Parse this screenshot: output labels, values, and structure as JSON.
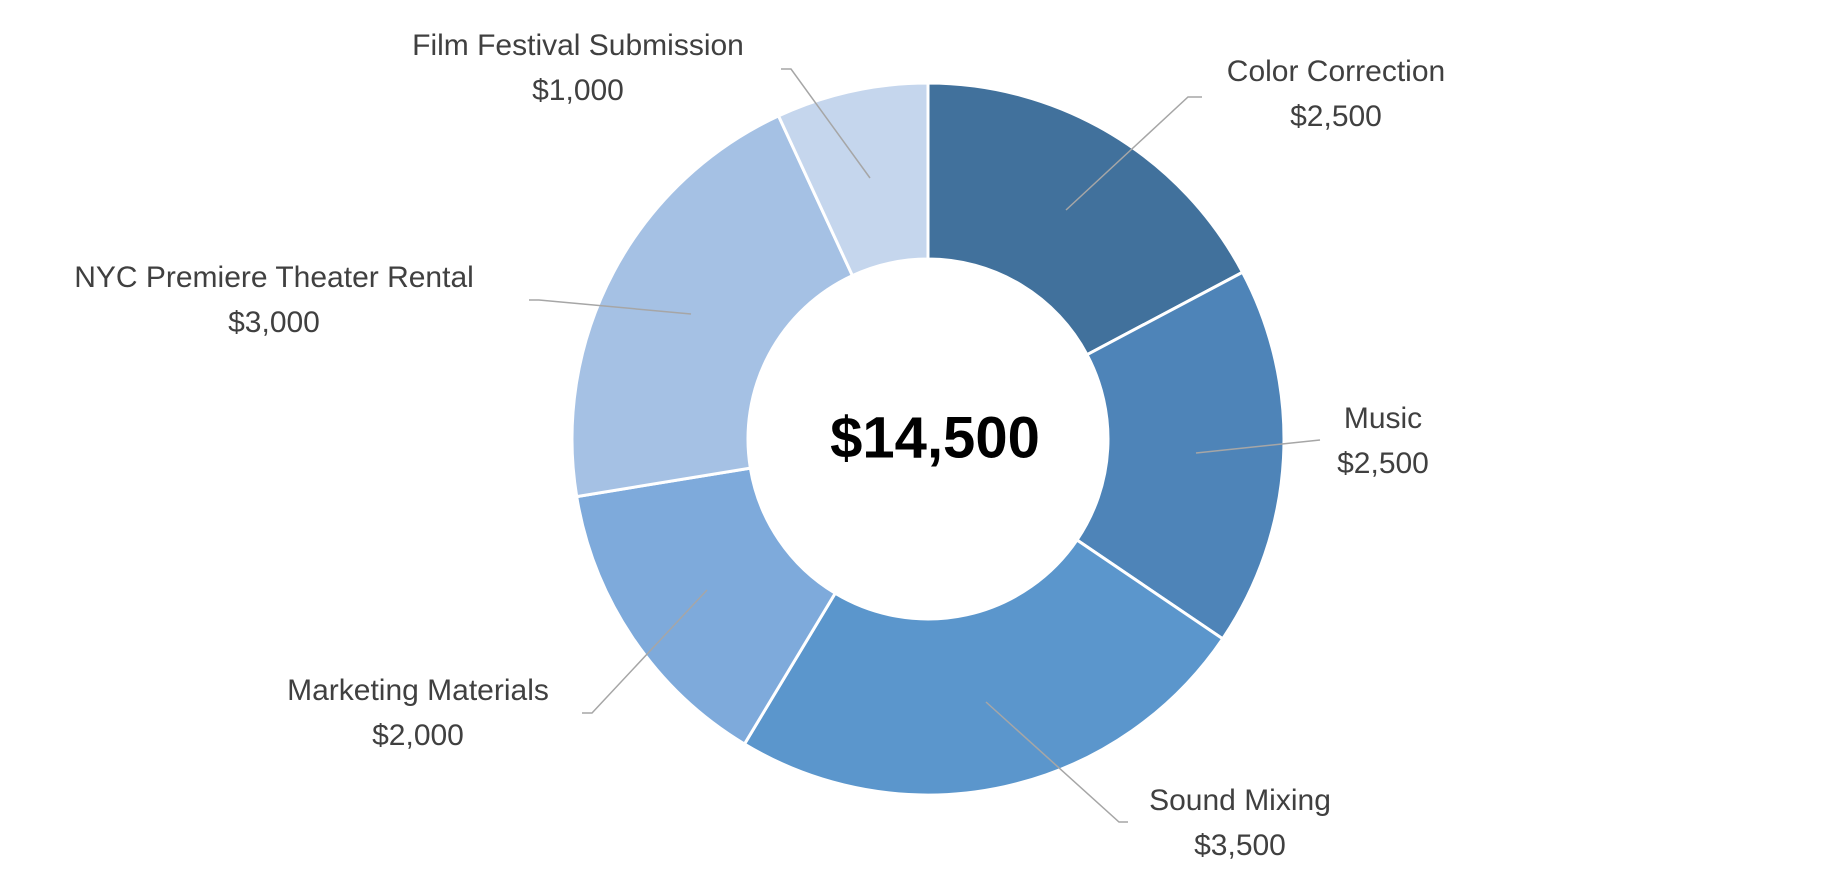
{
  "chart_data": {
    "type": "donut",
    "center_label": "$14,500",
    "categories": [
      "Color Correction",
      "Music",
      "Sound Mixing",
      "Marketing Materials",
      "NYC Premiere Theater Rental",
      "Film Festival Submission"
    ],
    "values": [
      2500,
      2500,
      3500,
      2000,
      3000,
      1000
    ],
    "value_labels": [
      "$2,500",
      "$2,500",
      "$3,500",
      "$2,000",
      "$3,000",
      "$1,000"
    ],
    "colors": [
      "#41719c",
      "#4e84b8",
      "#5b96cc",
      "#7eaadb",
      "#a5c1e4",
      "#c5d6ed"
    ]
  }
}
